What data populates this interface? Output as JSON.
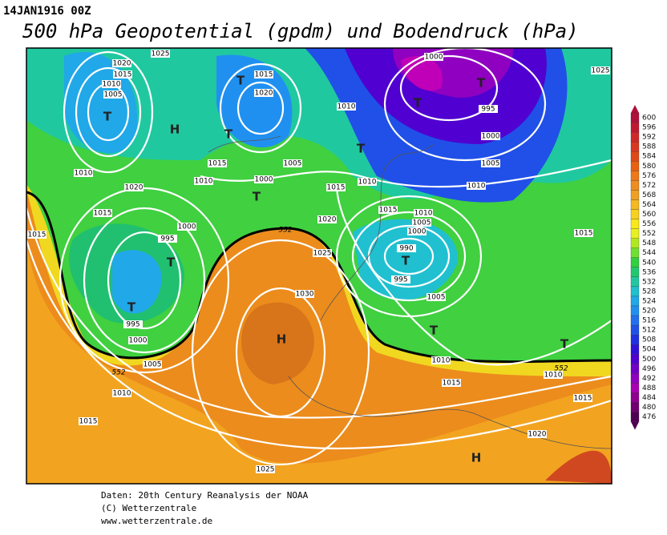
{
  "header": {
    "date": "14JAN1916 00Z",
    "title": "500 hPa Geopotential (gpdm) und Bodendruck (hPa)"
  },
  "map": {
    "isobar_labels": [
      "1025",
      "1020",
      "1015",
      "1010",
      "1005",
      "1015",
      "1020",
      "1000",
      "995",
      "1000",
      "1005",
      "1010",
      "1010",
      "1025",
      "1010",
      "1020",
      "1015",
      "1010",
      "1005",
      "1000",
      "1015",
      "1010",
      "1015",
      "1010",
      "1005",
      "1000",
      "990",
      "995",
      "1005",
      "1015",
      "1015",
      "1000",
      "995",
      "1020",
      "1025",
      "1030",
      "995",
      "1000",
      "1005",
      "1010",
      "1015",
      "1025",
      "1010",
      "1015",
      "1010",
      "1015",
      "1020",
      "1015",
      "552",
      "552",
      "552"
    ],
    "centers": [
      "T",
      "H",
      "T",
      "T",
      "T",
      "T",
      "T",
      "T",
      "T",
      "T",
      "H",
      "T",
      "T",
      "T",
      "H"
    ]
  },
  "legend": {
    "levels": [
      600,
      596,
      592,
      588,
      584,
      580,
      576,
      572,
      568,
      564,
      560,
      556,
      552,
      548,
      544,
      540,
      536,
      532,
      528,
      524,
      520,
      516,
      512,
      508,
      504,
      500,
      496,
      492,
      488,
      484,
      480,
      476
    ],
    "colors": [
      "#b0103a",
      "#c01830",
      "#d02828",
      "#d83820",
      "#e04818",
      "#e86010",
      "#f07818",
      "#f08c20",
      "#f0a020",
      "#f5b820",
      "#f8d020",
      "#f8e818",
      "#e8f020",
      "#b0e820",
      "#70e030",
      "#30d040",
      "#20c870",
      "#20c8a0",
      "#20c0d0",
      "#20a8e8",
      "#2090f0",
      "#2070f0",
      "#2050e8",
      "#2030e0",
      "#3010d8",
      "#5000d0",
      "#7000c8",
      "#9000c0",
      "#a800b0",
      "#900090",
      "#700070",
      "#500050"
    ]
  },
  "footer": [
    "Daten: 20th Century Reanalysis der NOAA",
    "(C) Wetterzentrale",
    "www.wetterzentrale.de"
  ]
}
